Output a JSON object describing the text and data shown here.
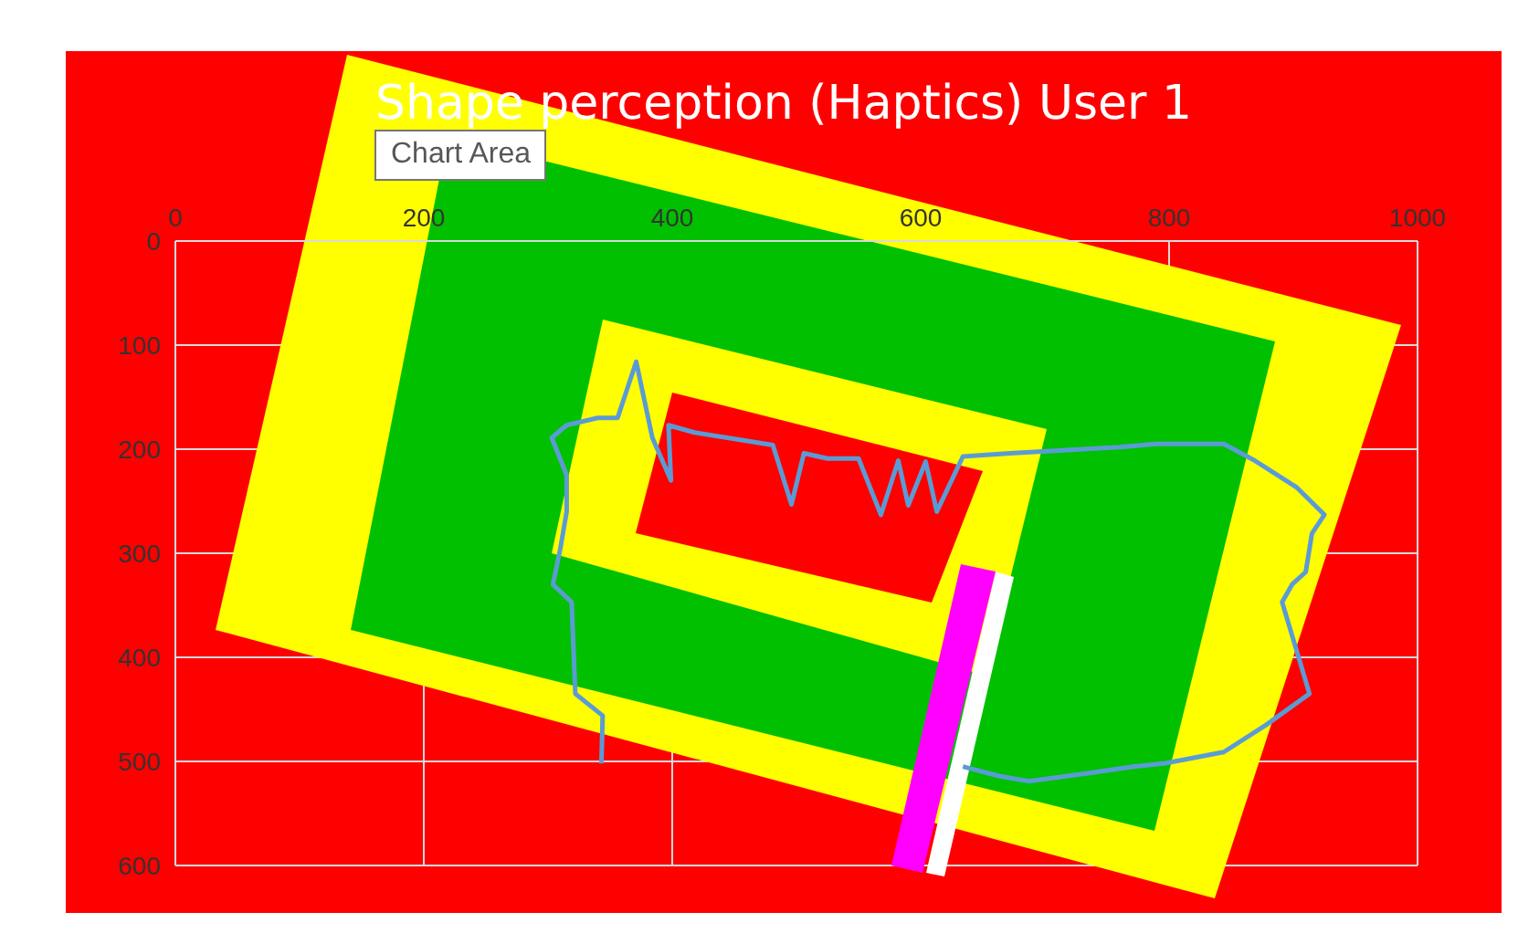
{
  "chart_data": {
    "type": "line",
    "title": "Shape perception (Haptics) User 1",
    "annotations": [
      "Chart Area"
    ],
    "x": [
      343,
      344,
      322,
      319,
      304,
      310,
      315,
      315,
      303,
      315,
      340,
      356,
      371,
      384,
      399,
      397,
      418,
      481,
      496,
      506,
      525,
      550,
      568,
      582,
      590,
      604,
      613,
      634,
      672,
      760,
      790,
      844,
      869,
      903,
      925,
      915,
      910,
      899,
      891,
      913,
      878,
      844,
      796,
      771,
      737,
      687,
      663,
      634
    ],
    "series": [
      {
        "color": "#5b9bd5",
        "values": [
          502,
          456,
          435,
          347,
          330,
          295,
          260,
          225,
          189,
          177,
          170,
          170,
          116,
          189,
          230,
          177,
          184,
          196,
          253,
          204,
          209,
          209,
          263,
          211,
          254,
          212,
          260,
          207,
          204,
          198,
          195,
          195,
          211,
          237,
          263,
          281,
          318,
          330,
          347,
          435,
          465,
          491,
          502,
          505,
          511,
          519,
          514,
          505
        ]
      }
    ],
    "xlim": [
      0,
      1000
    ],
    "xticks": [
      0,
      200,
      400,
      600,
      800,
      1000
    ],
    "ylim": [
      600,
      0
    ],
    "yticks": [
      0,
      100,
      200,
      300,
      400,
      500,
      600
    ],
    "grid": true,
    "marker": "none",
    "line_style": "solid"
  }
}
